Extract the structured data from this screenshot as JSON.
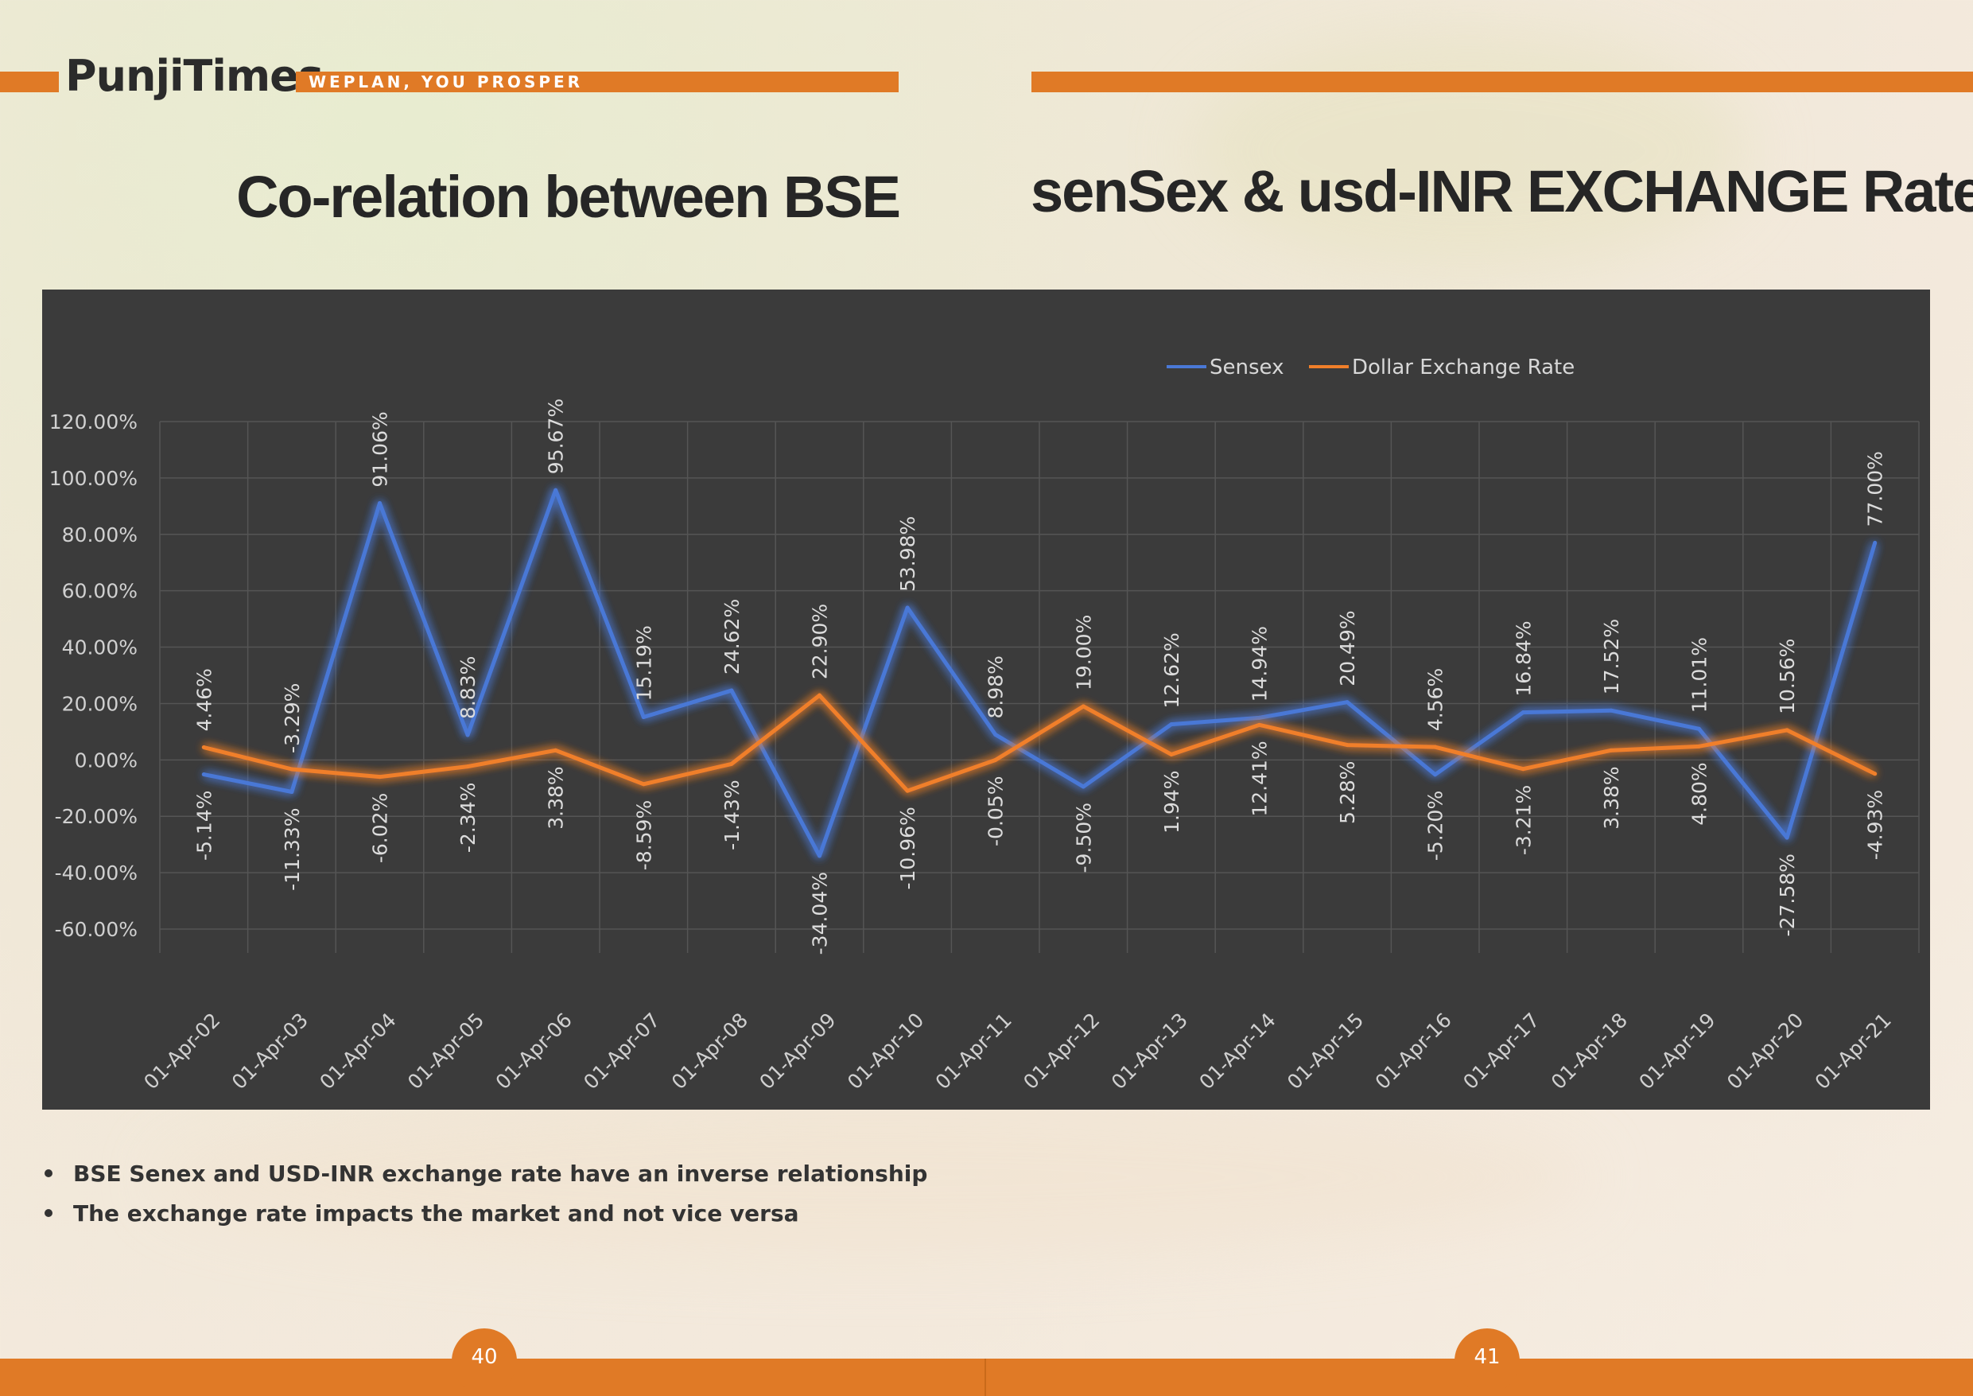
{
  "header": {
    "logo": "PunjiTimes",
    "tagline": "WEPLAN, YOU PROSPER",
    "title_left": "Co-relation between BSE",
    "title_right": "senSex & usd-INR EXCHANGE Rate"
  },
  "chart_data": {
    "type": "line",
    "categories": [
      "01-Apr-02",
      "01-Apr-03",
      "01-Apr-04",
      "01-Apr-05",
      "01-Apr-06",
      "01-Apr-07",
      "01-Apr-08",
      "01-Apr-09",
      "01-Apr-10",
      "01-Apr-11",
      "01-Apr-12",
      "01-Apr-13",
      "01-Apr-14",
      "01-Apr-15",
      "01-Apr-16",
      "01-Apr-17",
      "01-Apr-18",
      "01-Apr-19",
      "01-Apr-20",
      "01-Apr-21"
    ],
    "series": [
      {
        "name": "Sensex",
        "color": "#4a78d6",
        "values": [
          -5.14,
          -11.33,
          91.06,
          8.83,
          95.67,
          15.19,
          24.62,
          -34.04,
          53.98,
          8.98,
          -9.5,
          12.62,
          14.94,
          20.49,
          -5.2,
          16.84,
          17.52,
          11.01,
          -27.58,
          77.0
        ],
        "labels": [
          "-5.14%",
          "-11.33%",
          "91.06%",
          "8.83%",
          "95.67%",
          "15.19%",
          "24.62%",
          "-34.04%",
          "53.98%",
          "8.98%",
          "-9.50%",
          "12.62%",
          "14.94%",
          "20.49%",
          "-5.20%",
          "16.84%",
          "17.52%",
          "11.01%",
          "-27.58%",
          "77.00%"
        ]
      },
      {
        "name": "Dollar Exchange Rate",
        "color": "#f07f2a",
        "values": [
          4.46,
          -3.29,
          -6.02,
          -2.34,
          3.38,
          -8.59,
          -1.43,
          22.9,
          -10.96,
          -0.05,
          19.0,
          1.94,
          12.41,
          5.28,
          4.56,
          -3.21,
          3.38,
          4.8,
          10.56,
          -4.93
        ],
        "labels": [
          "4.46%",
          "-3.29%",
          "-6.02%",
          "-2.34%",
          "3.38%",
          "-8.59%",
          "-1.43%",
          "22.90%",
          "-10.96%",
          "-0.05%",
          "19.00%",
          "1.94%",
          "12.41%",
          "5.28%",
          "4.56%",
          "-3.21%",
          "3.38%",
          "4.80%",
          "10.56%",
          "-4.93%"
        ]
      }
    ],
    "yticks": [
      "120.00%",
      "100.00%",
      "80.00%",
      "60.00%",
      "40.00%",
      "20.00%",
      "0.00%",
      "-20.00%",
      "-40.00%",
      "-60.00%"
    ],
    "ylim": [
      -60,
      120
    ],
    "grid": true,
    "legend_position": "top-center"
  },
  "bullets": [
    "BSE Senex and USD-INR exchange rate have an inverse relationship",
    "The exchange rate impacts the market and not vice versa"
  ],
  "footer": {
    "page_left": "40",
    "page_right": "41"
  }
}
